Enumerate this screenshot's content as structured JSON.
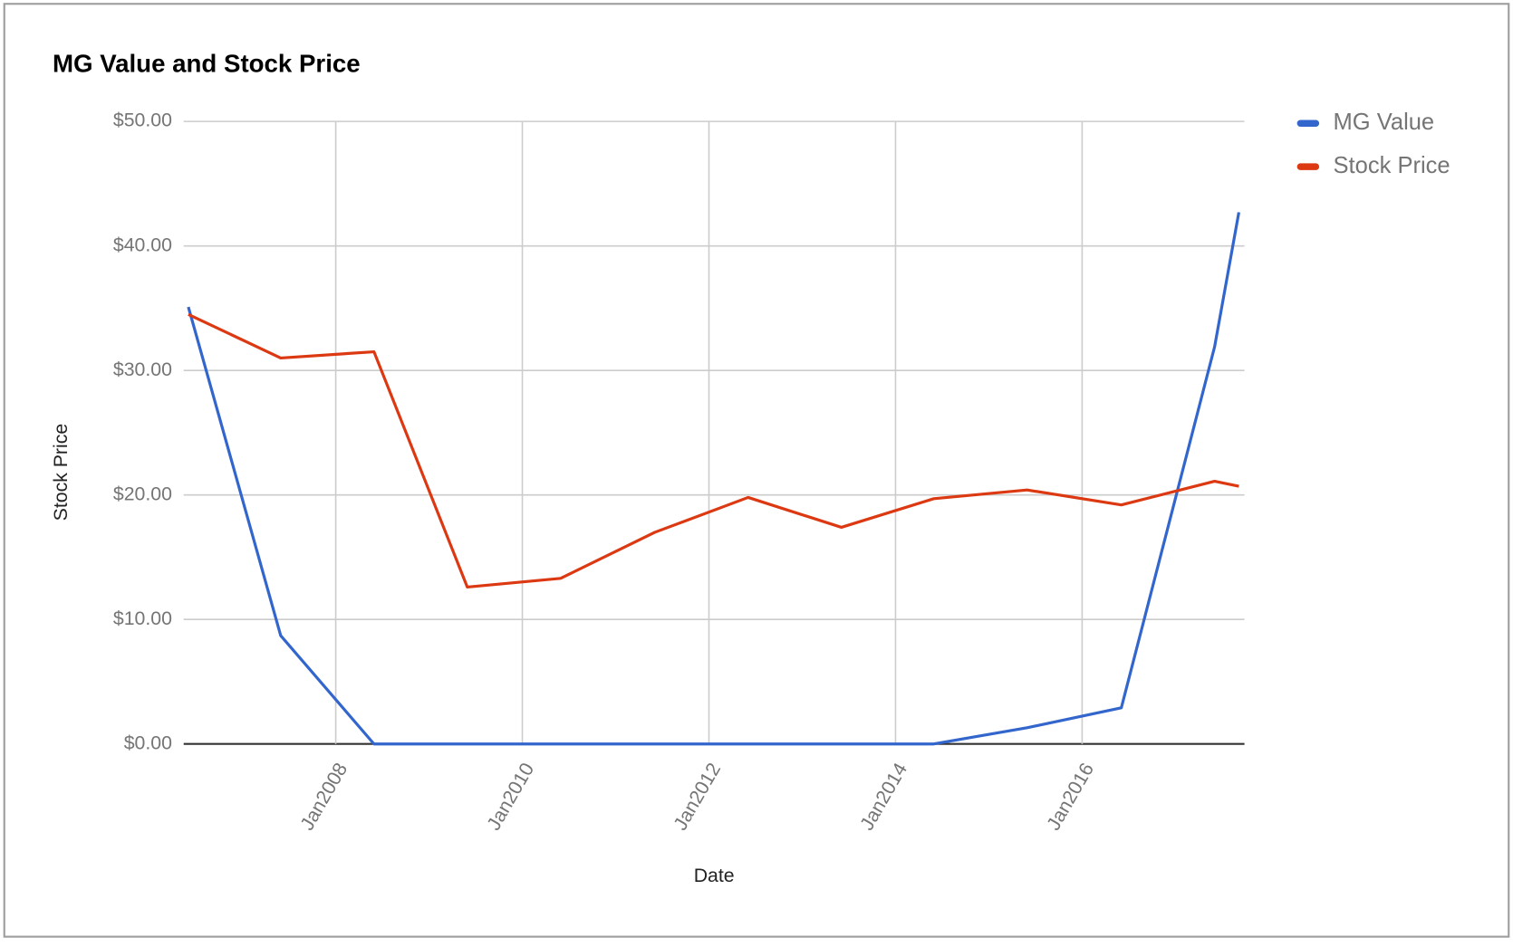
{
  "chart_data": {
    "type": "line",
    "title": "MG Value and Stock Price",
    "x_label": "Date",
    "y_label": "Stock Price",
    "x": [
      2006.42,
      2007.41,
      2008.41,
      2009.41,
      2010.41,
      2011.42,
      2012.42,
      2013.42,
      2014.41,
      2015.41,
      2016.42,
      2017.42,
      2017.68
    ],
    "series": [
      {
        "name": "MG Value",
        "color": "#3366cc",
        "values": [
          35.1,
          8.7,
          0,
          0,
          0,
          0,
          0,
          0,
          0,
          1.3,
          2.9,
          31.9,
          42.7
        ]
      },
      {
        "name": "Stock Price",
        "color": "#dc3912",
        "values": [
          34.5,
          31.0,
          31.5,
          12.6,
          13.3,
          17.0,
          19.8,
          17.4,
          19.7,
          20.4,
          19.2,
          21.1,
          20.7
        ]
      }
    ],
    "xlim": [
      2006.37,
      2017.74
    ],
    "xticks": [
      {
        "value": 2008,
        "label": "Jan2008"
      },
      {
        "value": 2010,
        "label": "Jan2010"
      },
      {
        "value": 2012,
        "label": "Jan2012"
      },
      {
        "value": 2014,
        "label": "Jan2014"
      },
      {
        "value": 2016,
        "label": "Jan2016"
      }
    ],
    "ylim": [
      0,
      50
    ],
    "yticks": [
      {
        "value": 0,
        "label": "$0.00"
      },
      {
        "value": 10,
        "label": "$10.00"
      },
      {
        "value": 20,
        "label": "$20.00"
      },
      {
        "value": 30,
        "label": "$30.00"
      },
      {
        "value": 40,
        "label": "$40.00"
      },
      {
        "value": 50,
        "label": "$50.00"
      }
    ],
    "grid": true,
    "legend": "right"
  }
}
